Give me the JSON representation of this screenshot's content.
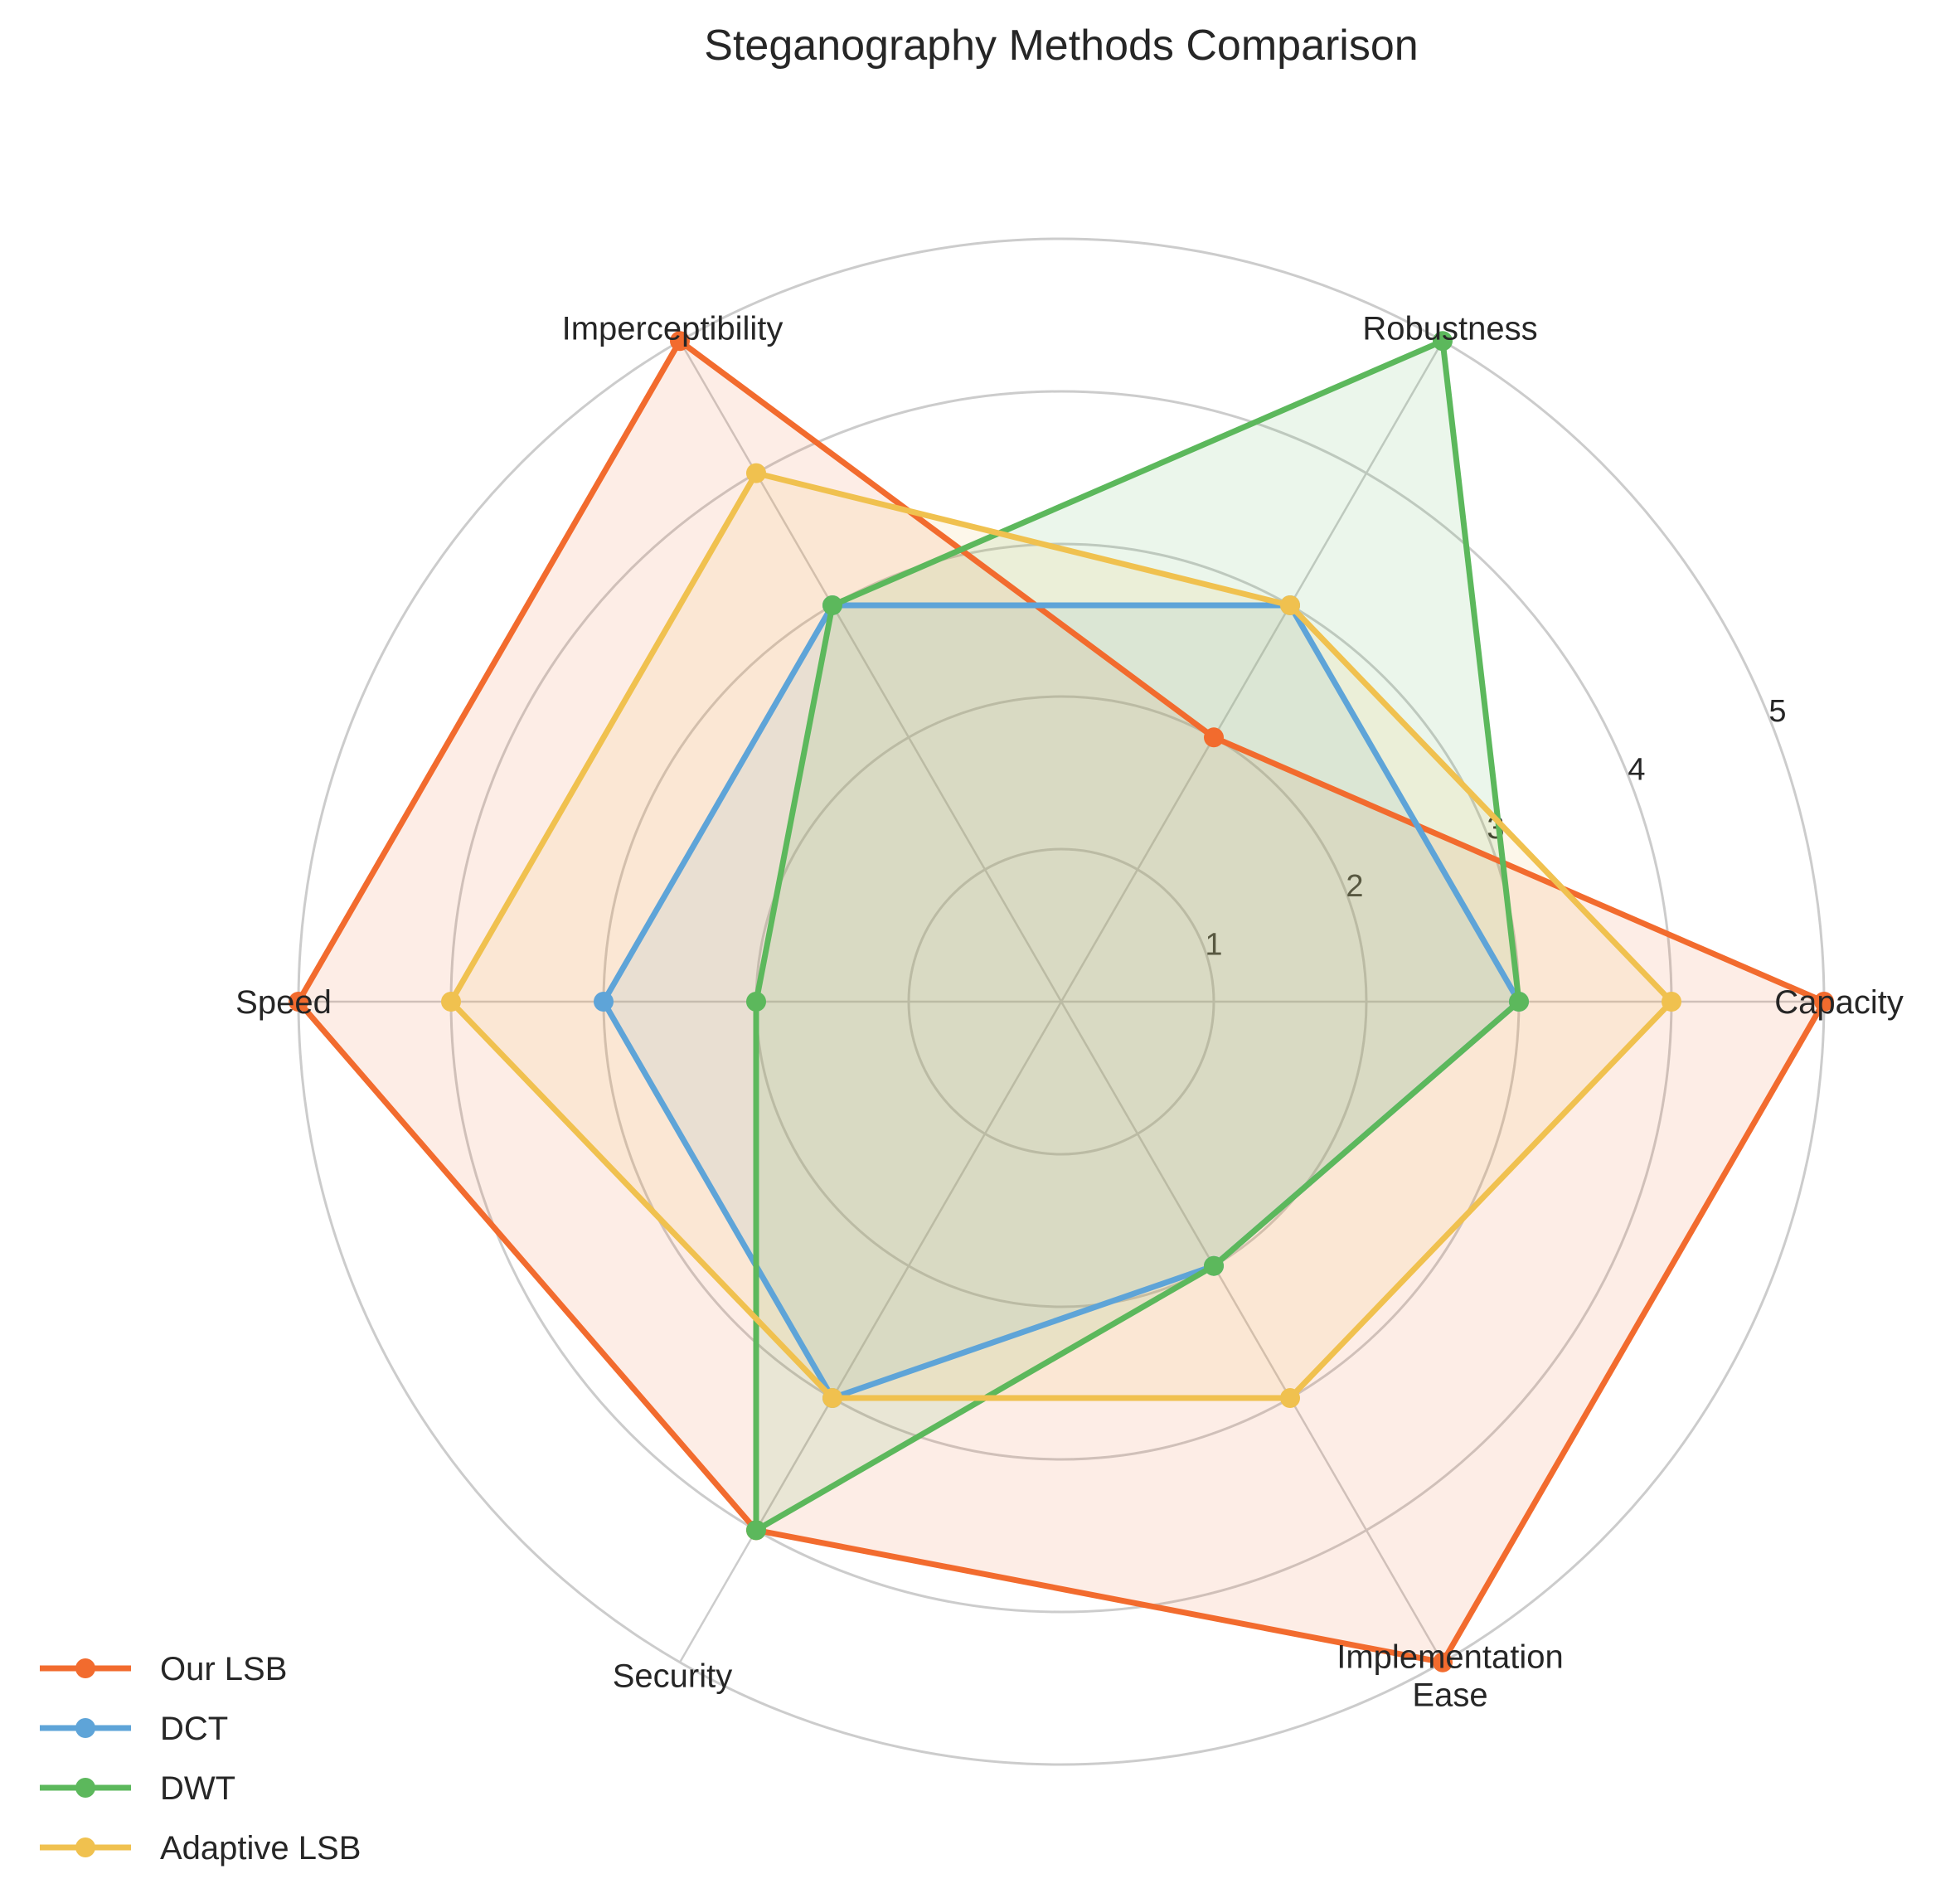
{
  "chart_data": {
    "type": "radar",
    "title": "Steganography Methods Comparison",
    "axes": [
      "Capacity",
      "Robustness",
      "Imperceptibility",
      "Speed",
      "Security",
      "Implementation\nEase"
    ],
    "rlim": [
      0,
      5
    ],
    "rticks": [
      1,
      2,
      3,
      4,
      5
    ],
    "grid": true,
    "legend_position": "bottom-left",
    "series": [
      {
        "name": "Our LSB",
        "color": "#f26b2e",
        "values": [
          5,
          2,
          5,
          5,
          4,
          5
        ]
      },
      {
        "name": "DCT",
        "color": "#5ea4d8",
        "values": [
          3,
          3,
          3,
          3,
          3,
          2
        ]
      },
      {
        "name": "DWT",
        "color": "#5cb85c",
        "values": [
          3,
          5,
          3,
          2,
          4,
          2
        ]
      },
      {
        "name": "Adaptive LSB",
        "color": "#f0c14f",
        "values": [
          4,
          3,
          4,
          4,
          3,
          3
        ]
      }
    ]
  }
}
